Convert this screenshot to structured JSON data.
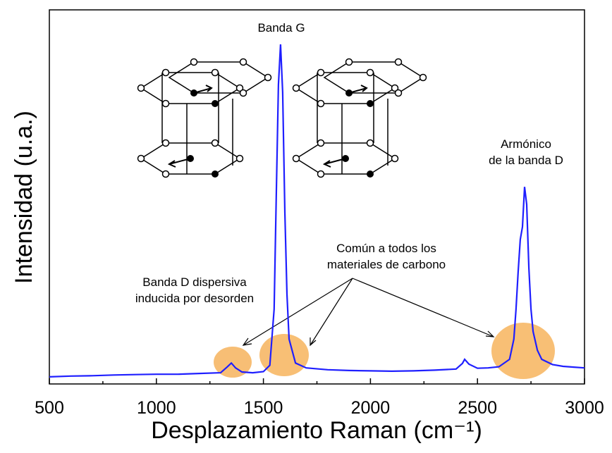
{
  "chart_data": {
    "type": "line",
    "xlabel": "Desplazamiento Raman (cm⁻¹)",
    "ylabel": "Intensidad (u.a.)",
    "annotations": [
      [
        "Banda G"
      ],
      [
        "Armónico",
        "de la banda D"
      ],
      [
        "Común a todos los",
        "materiales de carbono"
      ],
      [
        "Banda D dispersiva",
        "inducida por desorden"
      ]
    ],
    "x": [
      500,
      600,
      700,
      800,
      900,
      1000,
      1100,
      1200,
      1300,
      1330,
      1350,
      1370,
      1400,
      1450,
      1500,
      1530,
      1550,
      1560,
      1570,
      1580,
      1590,
      1600,
      1610,
      1620,
      1650,
      1700,
      1800,
      1900,
      2000,
      2100,
      2200,
      2300,
      2400,
      2430,
      2440,
      2460,
      2500,
      2550,
      2600,
      2650,
      2670,
      2680,
      2690,
      2700,
      2710,
      2720,
      2730,
      2740,
      2750,
      2760,
      2780,
      2800,
      2850,
      2900,
      2950,
      3000
    ],
    "values": [
      1.9,
      2.1,
      2.2,
      2.4,
      2.5,
      2.6,
      2.6,
      2.8,
      3.0,
      4.5,
      5.6,
      4.3,
      3.2,
      3.0,
      3.3,
      5,
      20,
      50,
      80,
      90.8,
      78,
      46,
      24,
      12,
      5.6,
      4.3,
      3.8,
      3.6,
      3.5,
      3.4,
      3.5,
      3.7,
      4.0,
      5.5,
      6.6,
      5.3,
      4.2,
      4.3,
      4.6,
      6.6,
      12,
      19.8,
      30,
      38.6,
      42,
      52.7,
      48,
      31,
      20,
      14,
      9,
      6.6,
      5.2,
      4.7,
      4.5,
      4.3
    ],
    "color": "#1f1fff",
    "xlim": [
      500,
      3000
    ],
    "ylim": [
      0,
      100
    ],
    "xticks": [
      500,
      1000,
      1500,
      2000,
      2500,
      3000
    ]
  }
}
